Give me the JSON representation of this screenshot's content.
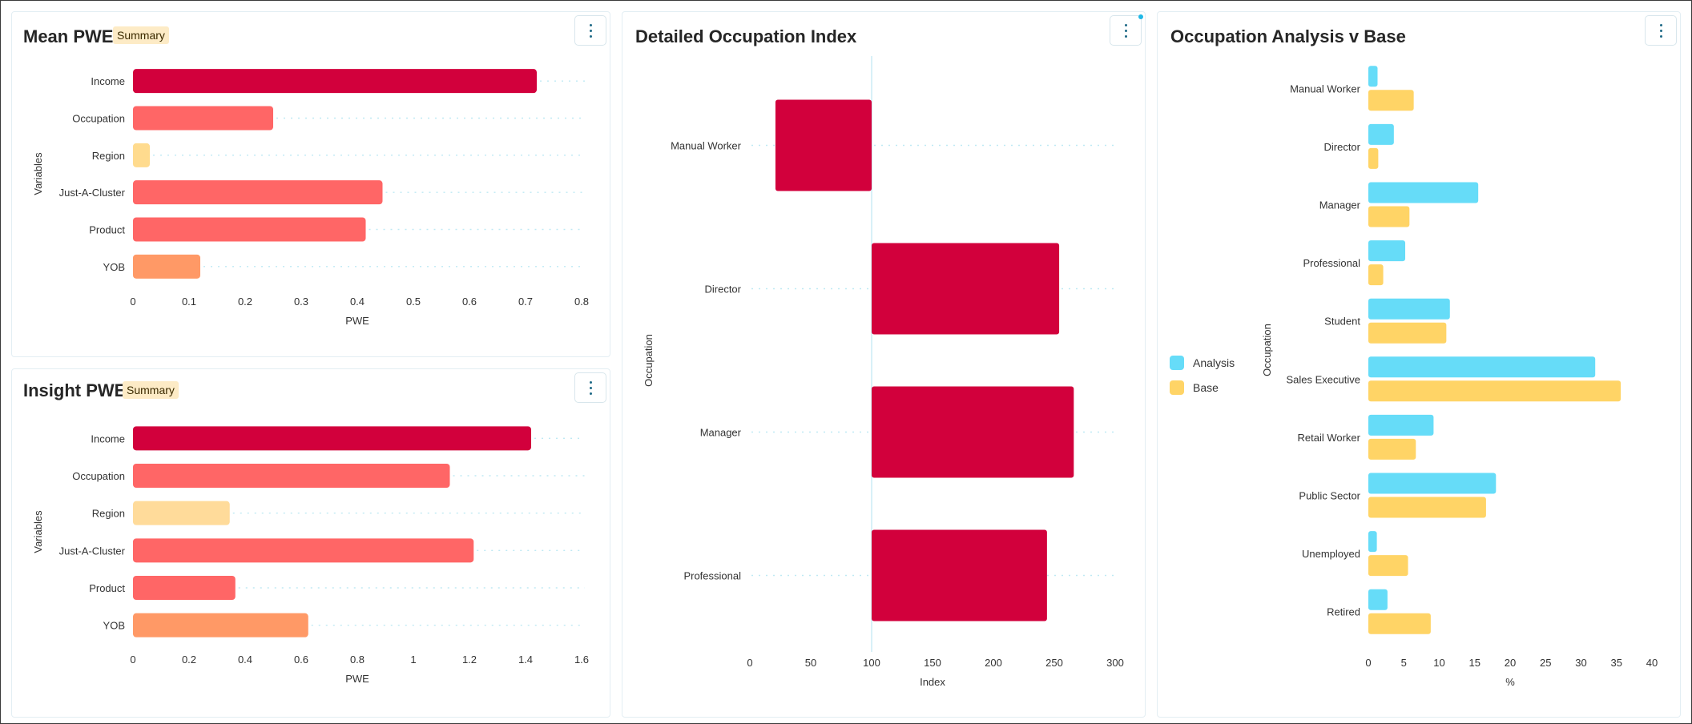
{
  "panels": {
    "mean_pwe": {
      "title": "Mean PWE",
      "badge": "Summary"
    },
    "insight_pwe": {
      "title": "Insight PWE",
      "badge": "Summary"
    },
    "detailed_occupation": {
      "title": "Detailed Occupation Index"
    },
    "occupation_analysis": {
      "title": "Occupation Analysis v Base"
    }
  },
  "chart_data": [
    {
      "id": "mean_pwe",
      "type": "bar",
      "orientation": "horizontal",
      "categories": [
        "Income",
        "Occupation",
        "Region",
        "Just-A-Cluster",
        "Product",
        "YOB"
      ],
      "values": [
        0.72,
        0.25,
        0.03,
        0.445,
        0.415,
        0.12
      ],
      "colors": [
        "#d2003c",
        "#ff6666",
        "#ffdb8e",
        "#ff6666",
        "#ff6666",
        "#ff9966"
      ],
      "xlabel": "PWE",
      "ylabel": "Variables",
      "xlim": [
        0,
        0.8
      ],
      "xticks": [
        "0",
        "0.1",
        "0.2",
        "0.3",
        "0.4",
        "0.5",
        "0.6",
        "0.7",
        "0.8"
      ]
    },
    {
      "id": "insight_pwe",
      "type": "bar",
      "orientation": "horizontal",
      "categories": [
        "Income",
        "Occupation",
        "Region",
        "Just-A-Cluster",
        "Product",
        "YOB"
      ],
      "values": [
        1.42,
        1.13,
        0.345,
        1.215,
        0.365,
        0.625
      ],
      "colors": [
        "#d2003c",
        "#ff6666",
        "#ffdb9a",
        "#ff6666",
        "#ff6666",
        "#ff9966"
      ],
      "xlabel": "PWE",
      "ylabel": "Variables",
      "xlim": [
        0,
        1.6
      ],
      "xticks": [
        "0",
        "0.2",
        "0.4",
        "0.6",
        "0.8",
        "1",
        "1.2",
        "1.4",
        "1.6"
      ]
    },
    {
      "id": "detailed_occupation",
      "type": "bar",
      "orientation": "horizontal",
      "baseline": 100,
      "categories": [
        "Manual Worker",
        "Director",
        "Manager",
        "Professional"
      ],
      "values": [
        21,
        254,
        266,
        244
      ],
      "color": "#d2003c",
      "xlabel": "Index",
      "ylabel": "Occupation",
      "xlim": [
        0,
        300
      ],
      "xticks": [
        "0",
        "50",
        "100",
        "150",
        "200",
        "250",
        "300"
      ]
    },
    {
      "id": "occupation_analysis",
      "type": "bar",
      "orientation": "horizontal",
      "grouped": true,
      "categories": [
        "Manual Worker",
        "Director",
        "Manager",
        "Professional",
        "Student",
        "Sales Executive",
        "Retail Worker",
        "Public Sector",
        "Unemployed",
        "Retired"
      ],
      "series": [
        {
          "name": "Analysis",
          "color": "#66dcf8",
          "values": [
            1.3,
            3.6,
            15.5,
            5.2,
            11.5,
            32,
            9.2,
            18,
            1.2,
            2.7
          ]
        },
        {
          "name": "Base",
          "color": "#ffd466",
          "values": [
            6.4,
            1.4,
            5.8,
            2.1,
            11,
            35.6,
            6.7,
            16.6,
            5.6,
            8.8
          ]
        }
      ],
      "xlabel": "%",
      "ylabel": "Occupation",
      "xlim": [
        0,
        40
      ],
      "xticks": [
        "0",
        "5",
        "10",
        "15",
        "20",
        "25",
        "30",
        "35",
        "40"
      ],
      "legend_position": "left"
    }
  ]
}
